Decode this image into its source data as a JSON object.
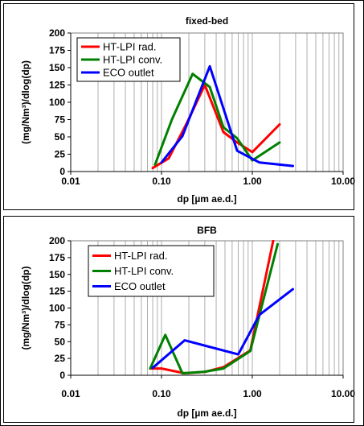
{
  "chart_data": [
    {
      "type": "line",
      "title": "fixed-bed",
      "xlabel": "dp [µm ae.d.]",
      "ylabel": "(mg/Nm³)/dlog(dp)",
      "x_scale": "log",
      "xlim": [
        0.01,
        10
      ],
      "ylim": [
        0,
        200
      ],
      "x_ticks": [
        0.01,
        0.1,
        1,
        10
      ],
      "x_tick_labels": [
        "0.01",
        "0.10",
        "1.00",
        "10.00"
      ],
      "y_ticks": [
        0,
        25,
        50,
        75,
        100,
        125,
        150,
        175,
        200
      ],
      "y_tick_labels": [
        "0",
        "25",
        "50",
        "75",
        "100",
        "125",
        "150",
        "175",
        "200"
      ],
      "grid": "vertical",
      "legend_position": "top-left",
      "series": [
        {
          "name": "HT-LPI rad.",
          "color": "#ff0000",
          "x": [
            0.08,
            0.12,
            0.19,
            0.3,
            0.48,
            0.68,
            1.0,
            2.0
          ],
          "y": [
            5,
            19,
            70,
            125,
            57,
            42,
            28,
            68
          ]
        },
        {
          "name": "HT-LPI conv.",
          "color": "#008000",
          "x": [
            0.085,
            0.13,
            0.22,
            0.34,
            0.48,
            0.68,
            1.0,
            2.0
          ],
          "y": [
            10,
            75,
            141,
            122,
            64,
            48,
            16,
            42
          ]
        },
        {
          "name": "ECO outlet",
          "color": "#0000ff",
          "x": [
            0.1,
            0.17,
            0.34,
            0.68,
            1.2,
            2.8
          ],
          "y": [
            13,
            51,
            152,
            30,
            13,
            8
          ]
        }
      ]
    },
    {
      "type": "line",
      "title": "BFB",
      "xlabel": "dp [µm ae.d.]",
      "ylabel": "(mg/Nm³)/dlog(dp)",
      "x_scale": "log",
      "xlim": [
        0.01,
        10
      ],
      "ylim": [
        0,
        200
      ],
      "x_ticks": [
        0.01,
        0.1,
        1,
        10
      ],
      "x_tick_labels": [
        "0.01",
        "0.10",
        "1.00",
        "10.00"
      ],
      "y_ticks": [
        0,
        25,
        50,
        75,
        100,
        125,
        150,
        175,
        200
      ],
      "y_tick_labels": [
        "0",
        "25",
        "50",
        "75",
        "100",
        "125",
        "150",
        "175",
        "200"
      ],
      "grid": "vertical",
      "legend_position": "top-left",
      "series": [
        {
          "name": "HT-LPI rad.",
          "color": "#ff0000",
          "x": [
            0.075,
            0.1,
            0.18,
            0.3,
            0.48,
            0.95,
            1.7
          ],
          "y": [
            10,
            10,
            3,
            5,
            12,
            37,
            200
          ]
        },
        {
          "name": "HT-LPI conv.",
          "color": "#008000",
          "x": [
            0.075,
            0.11,
            0.17,
            0.29,
            0.48,
            0.95,
            1.9
          ],
          "y": [
            10,
            60,
            3,
            5,
            10,
            36,
            195
          ]
        },
        {
          "name": "ECO outlet",
          "color": "#0000ff",
          "x": [
            0.08,
            0.18,
            0.7,
            1.2,
            2.8
          ],
          "y": [
            11,
            52,
            31,
            90,
            128
          ]
        }
      ]
    }
  ]
}
